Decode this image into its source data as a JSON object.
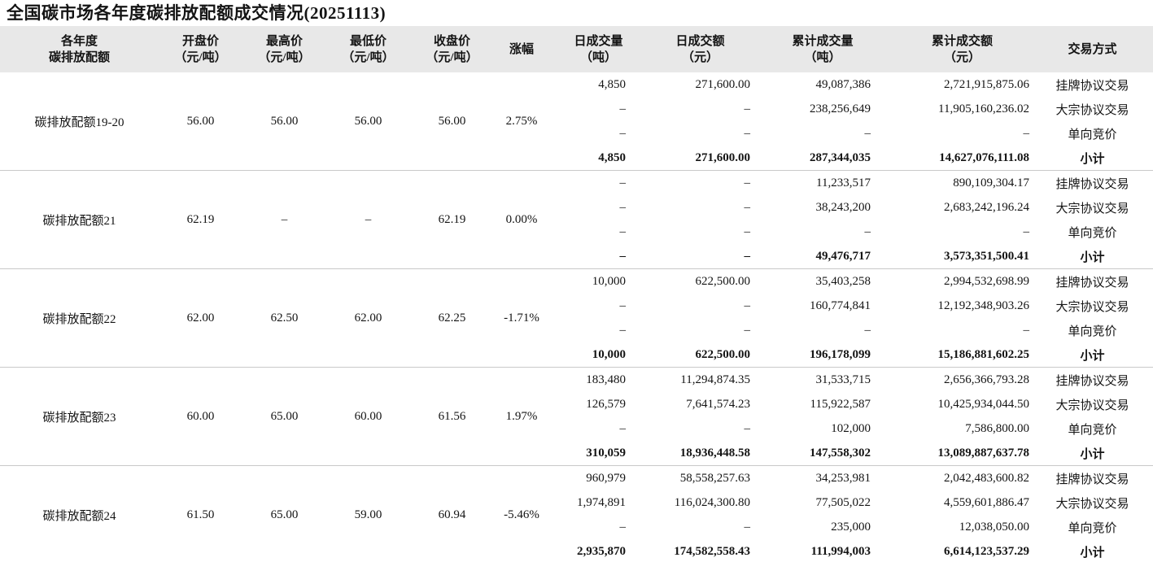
{
  "title": "全国碳市场各年度碳排放配额成交情况(20251113)",
  "table": {
    "columns": [
      {
        "line1": "各年度",
        "line2": "碳排放配额"
      },
      {
        "line1": "开盘价",
        "line2": "（元/吨）"
      },
      {
        "line1": "最高价",
        "line2": "（元/吨）"
      },
      {
        "line1": "最低价",
        "line2": "（元/吨）"
      },
      {
        "line1": "收盘价",
        "line2": "（元/吨）"
      },
      {
        "line1": "涨幅"
      },
      {
        "line1": "日成交量",
        "line2": "（吨）"
      },
      {
        "line1": "日成交额",
        "line2": "（元）"
      },
      {
        "line1": "累计成交量",
        "line2": "（吨）"
      },
      {
        "line1": "累计成交额",
        "line2": "（元）"
      },
      {
        "line1": "交易方式"
      }
    ],
    "blocks": [
      {
        "name": "碳排放配额19-20",
        "open": "56.00",
        "high": "56.00",
        "low": "56.00",
        "close": "56.00",
        "change": "2.75%",
        "rows": [
          {
            "daily_volume": "4,850",
            "daily_amount": "271,600.00",
            "cum_volume": "49,087,386",
            "cum_amount": "2,721,915,875.06",
            "method": "挂牌协议交易"
          },
          {
            "daily_volume": "–",
            "daily_amount": "–",
            "cum_volume": "238,256,649",
            "cum_amount": "11,905,160,236.02",
            "method": "大宗协议交易"
          },
          {
            "daily_volume": "–",
            "daily_amount": "–",
            "cum_volume": "–",
            "cum_amount": "–",
            "method": "单向竞价"
          },
          {
            "daily_volume": "4,850",
            "daily_amount": "271,600.00",
            "cum_volume": "287,344,035",
            "cum_amount": "14,627,076,111.08",
            "method": "小计"
          }
        ]
      },
      {
        "name": "碳排放配额21",
        "open": "62.19",
        "high": "–",
        "low": "–",
        "close": "62.19",
        "change": "0.00%",
        "rows": [
          {
            "daily_volume": "–",
            "daily_amount": "–",
            "cum_volume": "11,233,517",
            "cum_amount": "890,109,304.17",
            "method": "挂牌协议交易"
          },
          {
            "daily_volume": "–",
            "daily_amount": "–",
            "cum_volume": "38,243,200",
            "cum_amount": "2,683,242,196.24",
            "method": "大宗协议交易"
          },
          {
            "daily_volume": "–",
            "daily_amount": "–",
            "cum_volume": "–",
            "cum_amount": "–",
            "method": "单向竞价"
          },
          {
            "daily_volume": "–",
            "daily_amount": "–",
            "cum_volume": "49,476,717",
            "cum_amount": "3,573,351,500.41",
            "method": "小计"
          }
        ]
      },
      {
        "name": "碳排放配额22",
        "open": "62.00",
        "high": "62.50",
        "low": "62.00",
        "close": "62.25",
        "change": "-1.71%",
        "rows": [
          {
            "daily_volume": "10,000",
            "daily_amount": "622,500.00",
            "cum_volume": "35,403,258",
            "cum_amount": "2,994,532,698.99",
            "method": "挂牌协议交易"
          },
          {
            "daily_volume": "–",
            "daily_amount": "–",
            "cum_volume": "160,774,841",
            "cum_amount": "12,192,348,903.26",
            "method": "大宗协议交易"
          },
          {
            "daily_volume": "–",
            "daily_amount": "–",
            "cum_volume": "–",
            "cum_amount": "–",
            "method": "单向竞价"
          },
          {
            "daily_volume": "10,000",
            "daily_amount": "622,500.00",
            "cum_volume": "196,178,099",
            "cum_amount": "15,186,881,602.25",
            "method": "小计"
          }
        ]
      },
      {
        "name": "碳排放配额23",
        "open": "60.00",
        "high": "65.00",
        "low": "60.00",
        "close": "61.56",
        "change": "1.97%",
        "rows": [
          {
            "daily_volume": "183,480",
            "daily_amount": "11,294,874.35",
            "cum_volume": "31,533,715",
            "cum_amount": "2,656,366,793.28",
            "method": "挂牌协议交易"
          },
          {
            "daily_volume": "126,579",
            "daily_amount": "7,641,574.23",
            "cum_volume": "115,922,587",
            "cum_amount": "10,425,934,044.50",
            "method": "大宗协议交易"
          },
          {
            "daily_volume": "–",
            "daily_amount": "–",
            "cum_volume": "102,000",
            "cum_amount": "7,586,800.00",
            "method": "单向竞价"
          },
          {
            "daily_volume": "310,059",
            "daily_amount": "18,936,448.58",
            "cum_volume": "147,558,302",
            "cum_amount": "13,089,887,637.78",
            "method": "小计"
          }
        ]
      },
      {
        "name": "碳排放配额24",
        "open": "61.50",
        "high": "65.00",
        "low": "59.00",
        "close": "60.94",
        "change": "-5.46%",
        "rows": [
          {
            "daily_volume": "960,979",
            "daily_amount": "58,558,257.63",
            "cum_volume": "34,253,981",
            "cum_amount": "2,042,483,600.82",
            "method": "挂牌协议交易"
          },
          {
            "daily_volume": "1,974,891",
            "daily_amount": "116,024,300.80",
            "cum_volume": "77,505,022",
            "cum_amount": "4,559,601,886.47",
            "method": "大宗协议交易"
          },
          {
            "daily_volume": "–",
            "daily_amount": "–",
            "cum_volume": "235,000",
            "cum_amount": "12,038,050.00",
            "method": "单向竞价"
          },
          {
            "daily_volume": "2,935,870",
            "daily_amount": "174,582,558.43",
            "cum_volume": "111,994,003",
            "cum_amount": "6,614,123,537.29",
            "method": "小计"
          }
        ]
      }
    ]
  }
}
